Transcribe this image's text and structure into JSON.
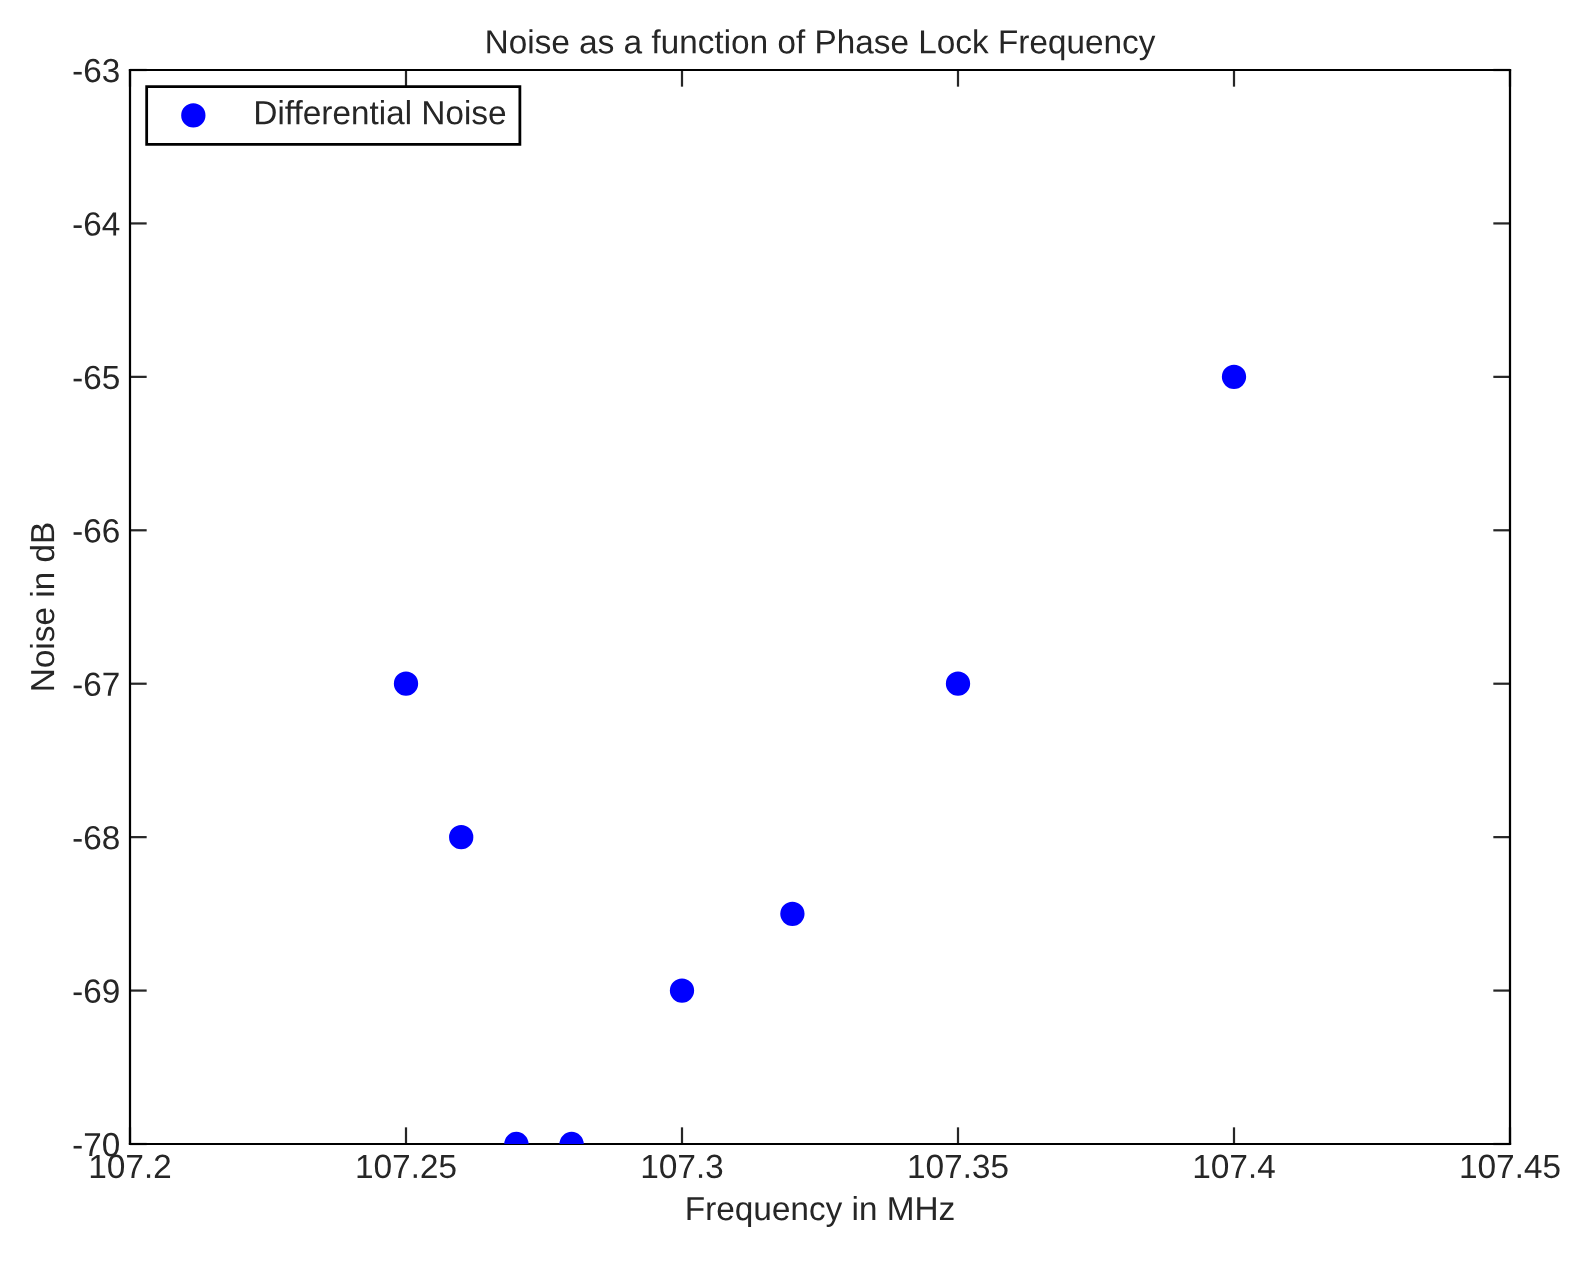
{
  "chart_data": {
    "type": "scatter",
    "title": "Noise as a function of Phase Lock Frequency",
    "xlabel": "Frequency in MHz",
    "ylabel": "Noise in dB",
    "x": [
      107.25,
      107.26,
      107.27,
      107.28,
      107.3,
      107.32,
      107.35,
      107.4
    ],
    "series": [
      {
        "name": "Differential Noise",
        "color": "#0000ff",
        "values": [
          -67,
          -68,
          -70,
          -70,
          -69,
          -68.5,
          -67,
          -65
        ]
      }
    ],
    "xlim": [
      107.2,
      107.45
    ],
    "xticks": [
      107.2,
      107.25,
      107.3,
      107.35,
      107.4,
      107.45
    ],
    "ylim": [
      -70,
      -63
    ],
    "yticks": [
      -70,
      -69,
      -68,
      -67,
      -66,
      -65,
      -64,
      -63
    ],
    "marker": "circle",
    "legend": "top left",
    "grid": false
  }
}
